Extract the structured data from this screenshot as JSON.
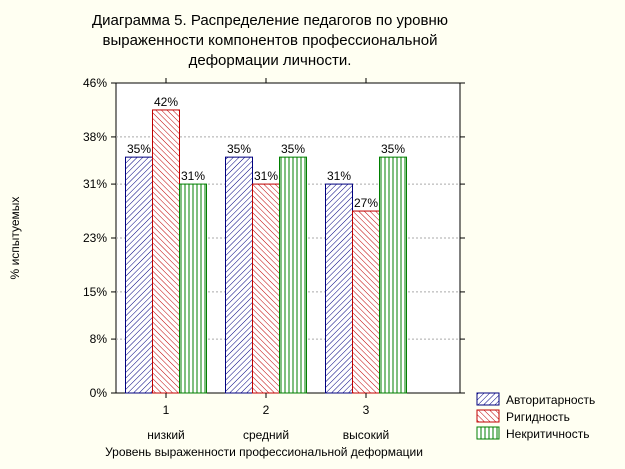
{
  "chart_data": {
    "type": "bar",
    "title_lines": [
      "Диаграмма 5. Распределение педагогов по уровню",
      "выраженности компонентов профессиональной",
      "деформации личности."
    ],
    "xlabel": "Уровень выраженности профессиональной деформации",
    "ylabel": "% испытуемых",
    "categories": [
      "1",
      "2",
      "3"
    ],
    "category_sublabels": [
      "низкий",
      "средний",
      "высокий"
    ],
    "ylim": [
      0,
      46
    ],
    "yticks": [
      0,
      8,
      15,
      23,
      31,
      38,
      46
    ],
    "ytick_labels": [
      "0%",
      "8%",
      "15%",
      "23%",
      "31%",
      "38%",
      "46%"
    ],
    "grid": true,
    "legend_position": "bottom-right",
    "series": [
      {
        "name": "Авторитарность",
        "values": [
          35,
          35,
          31
        ],
        "labels": [
          "35%",
          "35%",
          "31%"
        ],
        "color": "#00007f",
        "pattern": "diagonal-forward"
      },
      {
        "name": "Ригидность",
        "values": [
          42,
          31,
          27
        ],
        "labels": [
          "42%",
          "31%",
          "27%"
        ],
        "color": "#c00000",
        "pattern": "diagonal-back"
      },
      {
        "name": "Некритичность",
        "values": [
          31,
          35,
          35
        ],
        "labels": [
          "31%",
          "35%",
          "35%"
        ],
        "color": "#007f00",
        "pattern": "vertical"
      }
    ]
  }
}
